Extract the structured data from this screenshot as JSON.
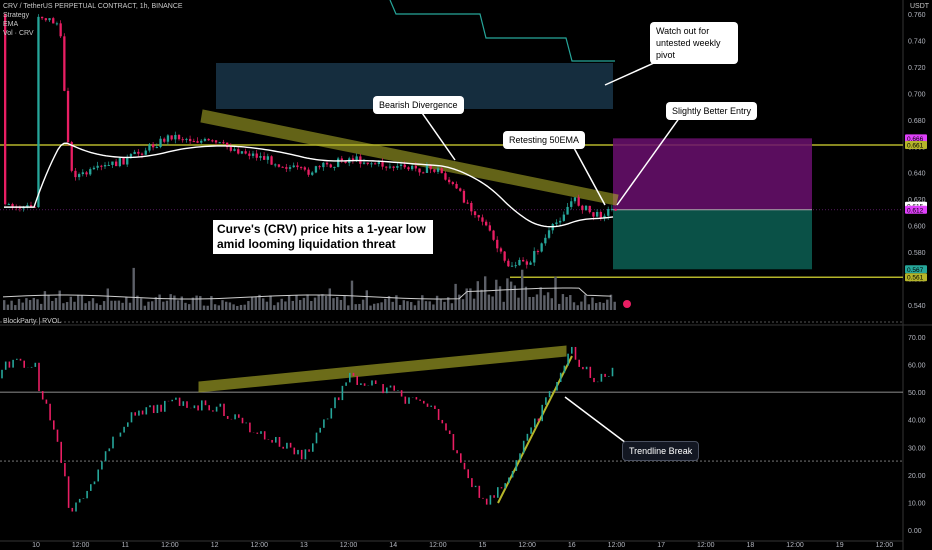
{
  "header": {
    "symbol_line": "CRV / TetherUS PERPETUAL CONTRACT, 1h, BINANCE",
    "strategy_line": "Strategy",
    "ema_line": "EMA",
    "vol_line": "Vol · CRV",
    "rsi_label": "BlockParty | RVOL",
    "currency": "USDT"
  },
  "price_axis": {
    "ticks": [
      "0.760",
      "0.740",
      "0.720",
      "0.700",
      "0.680",
      "0.660",
      "0.640",
      "0.620",
      "0.600",
      "0.580",
      "0.560",
      "0.540"
    ],
    "badges": [
      {
        "text": "0.666",
        "color": "#e040fb"
      },
      {
        "text": "0.661",
        "color": "#b5b52a"
      },
      {
        "text": "0.615",
        "color": "#ffffff"
      },
      {
        "text": "0.612",
        "color": "#e040fb"
      },
      {
        "text": "0.567",
        "color": "#26a69a"
      },
      {
        "text": "0.561",
        "color": "#b5b52a"
      }
    ]
  },
  "rsi_axis": {
    "ticks": [
      "70.00",
      "60.00",
      "50.00",
      "40.00",
      "30.00",
      "20.00",
      "10.00",
      "0.00"
    ]
  },
  "time_axis": {
    "labels": [
      "10",
      "12:00",
      "11",
      "12:00",
      "12",
      "12:00",
      "13",
      "12:00",
      "14",
      "12:00",
      "15",
      "12:00",
      "16",
      "12:00",
      "17",
      "12:00",
      "18",
      "12:00",
      "19",
      "12:00"
    ]
  },
  "annotations": {
    "headline": "Curve's (CRV) price hits a 1-year low amid looming liquidation threat",
    "bearish_divergence": "Bearish Divergence",
    "retesting": "Retesting 50EMA",
    "slightly_better_entry": "Slightly Better Entry",
    "watch_out": "Watch out for untested weekly pivot",
    "trendline_break": "Trendline Break"
  },
  "colors": {
    "up": "#26a69a",
    "down": "#e91e63",
    "ema": "#ffffff",
    "channel": "#b5b52a",
    "target_zone": "#6a0f6e",
    "stop_zone": "#0b5a4f",
    "pivot_box": "#173245"
  },
  "chart_data": {
    "type": "candlestick",
    "title": "CRV / TetherUS PERPETUAL CONTRACT, 1h, BINANCE",
    "interval": "1h",
    "price_range": [
      0.535,
      0.768
    ],
    "close_path": [
      {
        "t": "10 00:00",
        "c": 0.76
      },
      {
        "t": "10 06:00",
        "c": 0.752
      },
      {
        "t": "10 09:00",
        "c": 0.64
      },
      {
        "t": "10 12:00",
        "c": 0.638
      },
      {
        "t": "11 00:00",
        "c": 0.65
      },
      {
        "t": "11 12:00",
        "c": 0.668
      },
      {
        "t": "12 00:00",
        "c": 0.662
      },
      {
        "t": "12 12:00",
        "c": 0.652
      },
      {
        "t": "13 00:00",
        "c": 0.64
      },
      {
        "t": "13 12:00",
        "c": 0.651
      },
      {
        "t": "14 00:00",
        "c": 0.644
      },
      {
        "t": "14 12:00",
        "c": 0.642
      },
      {
        "t": "15 00:00",
        "c": 0.603
      },
      {
        "t": "15 06:00",
        "c": 0.57
      },
      {
        "t": "15 12:00",
        "c": 0.572
      },
      {
        "t": "16 00:00",
        "c": 0.62
      },
      {
        "t": "16 06:00",
        "c": 0.607
      },
      {
        "t": "16 12:00",
        "c": 0.614
      }
    ],
    "levels": {
      "pivot_line": 0.661,
      "lower_support": 0.561,
      "entry": 0.612,
      "target": 0.666,
      "stop": 0.567
    },
    "rsi_range": [
      0,
      72
    ],
    "rsi_levels": [
      50,
      25
    ],
    "rsi_path": [
      {
        "t": "10 00:00",
        "v": 55
      },
      {
        "t": "10 06:00",
        "v": 33
      },
      {
        "t": "10 09:00",
        "v": 7
      },
      {
        "t": "10 12:00",
        "v": 10
      },
      {
        "t": "11 00:00",
        "v": 40
      },
      {
        "t": "11 12:00",
        "v": 46
      },
      {
        "t": "12 00:00",
        "v": 45
      },
      {
        "t": "12 12:00",
        "v": 35
      },
      {
        "t": "13 00:00",
        "v": 27
      },
      {
        "t": "13 12:00",
        "v": 55
      },
      {
        "t": "14 00:00",
        "v": 50
      },
      {
        "t": "14 12:00",
        "v": 42
      },
      {
        "t": "15 00:00",
        "v": 10
      },
      {
        "t": "15 06:00",
        "v": 17
      },
      {
        "t": "15 12:00",
        "v": 33
      },
      {
        "t": "16 00:00",
        "v": 65
      },
      {
        "t": "16 06:00",
        "v": 53
      },
      {
        "t": "16 12:00",
        "v": 60
      }
    ]
  }
}
